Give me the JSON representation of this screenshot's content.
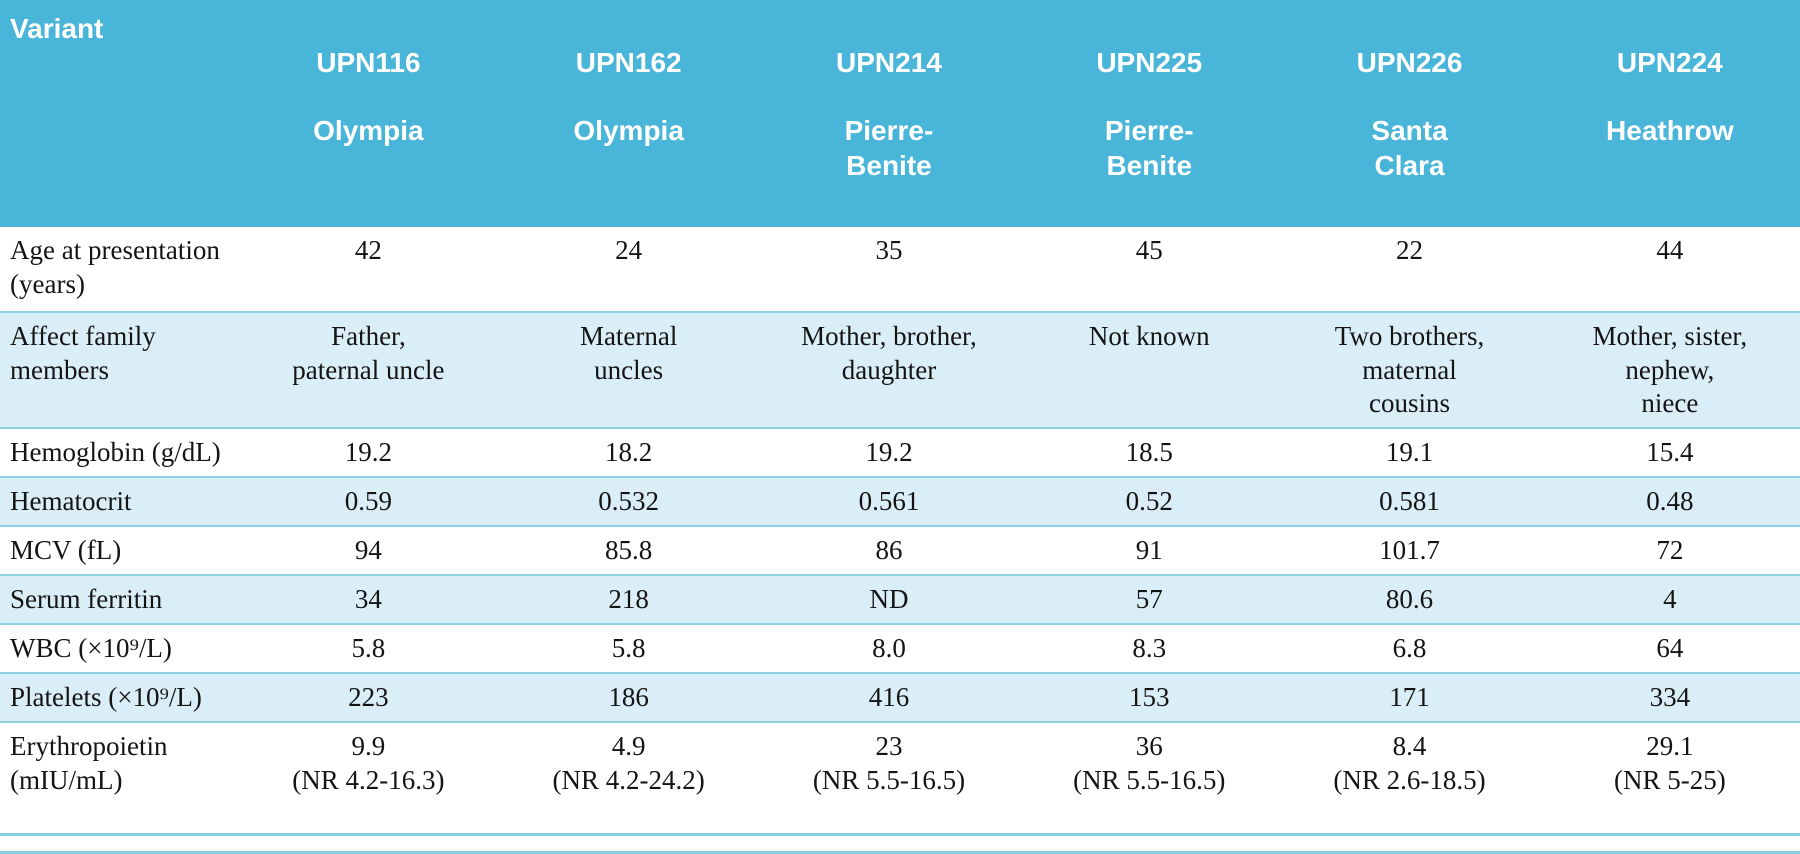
{
  "colors": {
    "header_bg": "#48b5d9",
    "header_text": "#ffffff",
    "row_alt_bg": "#daeef8",
    "row_line": "#8fd2e4",
    "body_text": "#141414"
  },
  "table": {
    "corner_label": "Variant",
    "columns": [
      {
        "id": "UPN116",
        "location": "Olympia"
      },
      {
        "id": "UPN162",
        "location": "Olympia"
      },
      {
        "id": "UPN214",
        "location": "Pierre-\nBenite"
      },
      {
        "id": "UPN225",
        "location": "Pierre-\nBenite"
      },
      {
        "id": "UPN226",
        "location": "Santa\nClara"
      },
      {
        "id": "UPN224",
        "location": "Heathrow"
      }
    ],
    "rows": [
      {
        "label": "Age at presentation\n(years)",
        "values": [
          "42",
          "24",
          "35",
          "45",
          "22",
          "44"
        ]
      },
      {
        "label": "Affect family\nmembers",
        "values": [
          "Father,\npaternal uncle",
          "Maternal\nuncles",
          "Mother, brother,\ndaughter",
          "Not known",
          "Two brothers,\nmaternal\ncousins",
          "Mother, sister,\nnephew,\nniece"
        ]
      },
      {
        "label": "Hemoglobin (g/dL)",
        "values": [
          "19.2",
          "18.2",
          "19.2",
          "18.5",
          "19.1",
          "15.4"
        ]
      },
      {
        "label": "Hematocrit",
        "values": [
          "0.59",
          "0.532",
          "0.561",
          "0.52",
          "0.581",
          "0.48"
        ]
      },
      {
        "label": "MCV (fL)",
        "values": [
          "94",
          "85.8",
          "86",
          "91",
          "101.7",
          "72"
        ]
      },
      {
        "label": "Serum ferritin",
        "values": [
          "34",
          "218",
          "ND",
          "57",
          "80.6",
          "4"
        ]
      },
      {
        "label": "WBC (×10⁹/L)",
        "values": [
          "5.8",
          "5.8",
          "8.0",
          "8.3",
          "6.8",
          "64"
        ]
      },
      {
        "label": "Platelets (×10⁹/L)",
        "values": [
          "223",
          "186",
          "416",
          "153",
          "171",
          "334"
        ]
      },
      {
        "label": "Erythropoietin\n(mIU/mL)",
        "values": [
          "9.9\n(NR 4.2-16.3)",
          "4.9\n(NR 4.2-24.2)",
          "23\n(NR 5.5-16.5)",
          "36\n(NR 5.5-16.5)",
          "8.4\n(NR 2.6-18.5)",
          "29.1\n(NR 5-25)"
        ]
      }
    ]
  }
}
